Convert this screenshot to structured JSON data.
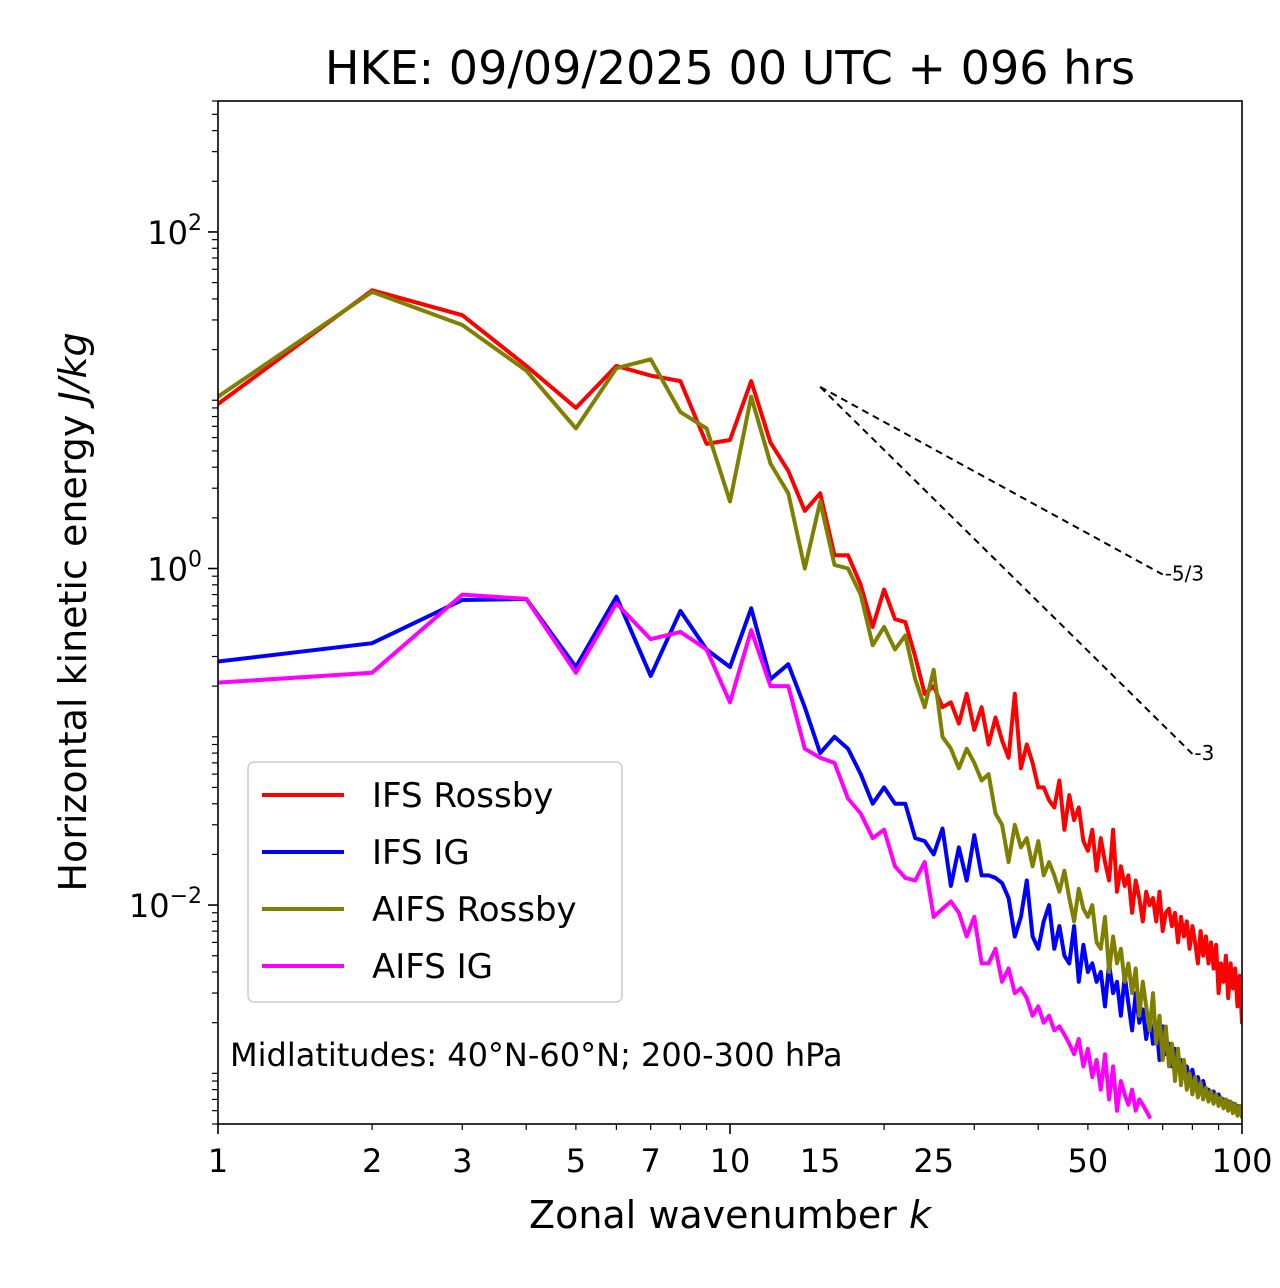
{
  "chart_data": {
    "type": "line",
    "title": "HKE: 09/09/2025 00 UTC + 096 hrs",
    "xlabel_main": "Zonal wavenumber ",
    "xlabel_var": "k",
    "ylabel_main": "Horizontal kinetic energy ",
    "ylabel_unit": "J/kg",
    "xscale": "log",
    "yscale": "log",
    "xlim": [
      1,
      100
    ],
    "ylim": [
      0.0005,
      600
    ],
    "x_ticks": [
      {
        "value": 1,
        "label": "1"
      },
      {
        "value": 2,
        "label": "2"
      },
      {
        "value": 3,
        "label": "3"
      },
      {
        "value": 5,
        "label": "5"
      },
      {
        "value": 7,
        "label": "7"
      },
      {
        "value": 10,
        "label": "10"
      },
      {
        "value": 15,
        "label": "15"
      },
      {
        "value": 25,
        "label": "25"
      },
      {
        "value": 50,
        "label": "50"
      },
      {
        "value": 100,
        "label": "100"
      }
    ],
    "y_ticks": [
      {
        "value": 100,
        "base": "10",
        "exp": "2"
      },
      {
        "value": 1,
        "base": "10",
        "exp": "0"
      },
      {
        "value": 0.01,
        "base": "10",
        "exp": "−2"
      }
    ],
    "annotation": "Midlatitudes: 40°N-60°N; 200-300 hPa",
    "legend_position": "lower-left",
    "reference_lines": [
      {
        "label": "-5/3",
        "slope": -1.6667,
        "x_start": 15,
        "y_start": 12,
        "x_end": 70
      },
      {
        "label": "-3",
        "slope": -3,
        "x_start": 15,
        "y_start": 12,
        "x_end": 80
      }
    ],
    "series": [
      {
        "name": "IFS Rossby",
        "color": "#ff0000",
        "x": [
          1,
          2,
          3,
          4,
          5,
          6,
          7,
          8,
          9,
          10,
          11,
          12,
          13,
          14,
          15,
          16,
          17,
          18,
          19,
          20,
          21,
          22,
          23,
          24,
          25,
          26,
          27,
          28,
          29,
          30,
          31,
          32,
          33,
          34,
          35,
          36,
          37,
          38,
          39,
          40,
          41,
          42,
          43,
          44,
          45,
          46,
          47,
          48,
          49,
          50,
          51,
          52,
          53,
          54,
          55,
          56,
          57,
          58,
          59,
          60,
          61,
          62,
          63,
          64,
          65,
          66,
          67,
          68,
          69,
          70,
          71,
          72,
          73,
          74,
          75,
          76,
          77,
          78,
          79,
          80,
          81,
          82,
          83,
          84,
          85,
          86,
          87,
          88,
          89,
          90,
          91,
          92,
          93,
          94,
          95,
          96,
          97,
          98,
          99,
          100
        ],
        "y": [
          9.5,
          45,
          32,
          16,
          9,
          16,
          14,
          13,
          5.5,
          5.8,
          13,
          5.6,
          3.8,
          2.2,
          2.8,
          1.2,
          1.2,
          0.8,
          0.45,
          0.75,
          0.5,
          0.48,
          0.3,
          0.18,
          0.2,
          0.15,
          0.16,
          0.12,
          0.18,
          0.11,
          0.15,
          0.09,
          0.13,
          0.095,
          0.075,
          0.18,
          0.065,
          0.09,
          0.07,
          0.05,
          0.05,
          0.042,
          0.038,
          0.055,
          0.028,
          0.045,
          0.032,
          0.038,
          0.024,
          0.021,
          0.028,
          0.016,
          0.025,
          0.018,
          0.014,
          0.028,
          0.012,
          0.017,
          0.013,
          0.015,
          0.009,
          0.014,
          0.011,
          0.008,
          0.012,
          0.01,
          0.011,
          0.008,
          0.012,
          0.007,
          0.009,
          0.0095,
          0.0075,
          0.009,
          0.006,
          0.0085,
          0.0065,
          0.008,
          0.0055,
          0.0075,
          0.006,
          0.0045,
          0.007,
          0.005,
          0.0065,
          0.0045,
          0.006,
          0.0042,
          0.0058,
          0.003,
          0.0045,
          0.0035,
          0.005,
          0.0028,
          0.0045,
          0.0032,
          0.0042,
          0.0025,
          0.0038,
          0.002
        ]
      },
      {
        "name": "IFS IG",
        "color": "#0000ff",
        "x": [
          1,
          2,
          3,
          4,
          5,
          6,
          7,
          8,
          9,
          10,
          11,
          12,
          13,
          14,
          15,
          16,
          17,
          18,
          19,
          20,
          21,
          22,
          23,
          24,
          25,
          26,
          27,
          28,
          29,
          30,
          31,
          32,
          33,
          34,
          35,
          36,
          37,
          38,
          39,
          40,
          41,
          42,
          43,
          44,
          45,
          46,
          47,
          48,
          49,
          50,
          51,
          52,
          53,
          54,
          55,
          56,
          57,
          58,
          59,
          60,
          61,
          62,
          63,
          64,
          65,
          66,
          67,
          68,
          69,
          70,
          71,
          72,
          73,
          74,
          75,
          76,
          77,
          78,
          79,
          80,
          81,
          82,
          83,
          84,
          85,
          86,
          87,
          88,
          89,
          90,
          91,
          92,
          93,
          94,
          95,
          96,
          97,
          98,
          99,
          100
        ],
        "y": [
          0.28,
          0.36,
          0.65,
          0.66,
          0.26,
          0.68,
          0.23,
          0.56,
          0.33,
          0.26,
          0.58,
          0.22,
          0.27,
          0.15,
          0.08,
          0.1,
          0.085,
          0.06,
          0.04,
          0.05,
          0.04,
          0.04,
          0.025,
          0.024,
          0.02,
          0.0285,
          0.013,
          0.022,
          0.014,
          0.026,
          0.015,
          0.015,
          0.0145,
          0.0135,
          0.011,
          0.0065,
          0.0085,
          0.014,
          0.0065,
          0.0055,
          0.008,
          0.01,
          0.0055,
          0.0075,
          0.005,
          0.0045,
          0.0075,
          0.0035,
          0.0058,
          0.004,
          0.0045,
          0.0035,
          0.004,
          0.0025,
          0.0045,
          0.003,
          0.0035,
          0.0022,
          0.0038,
          0.0026,
          0.0018,
          0.003,
          0.002,
          0.0024,
          0.0016,
          0.0022,
          0.0015,
          0.002,
          0.0012,
          0.0019,
          0.0013,
          0.0015,
          0.0011,
          0.0014,
          0.00105,
          0.0012,
          0.00095,
          0.0011,
          0.0009,
          0.00105,
          0.00085,
          0.00095,
          0.0008,
          0.0009,
          0.00075,
          0.0008,
          0.00072,
          0.00078,
          0.0007,
          0.00075,
          0.00068,
          0.0007,
          0.00066,
          0.00068,
          0.00064,
          0.00066,
          0.00062,
          0.00064,
          0.0006,
          0.00058
        ]
      },
      {
        "name": "AIFS Rossby",
        "color": "#808000",
        "x": [
          1,
          2,
          3,
          4,
          5,
          6,
          7,
          8,
          9,
          10,
          11,
          12,
          13,
          14,
          15,
          16,
          17,
          18,
          19,
          20,
          21,
          22,
          23,
          24,
          25,
          26,
          27,
          28,
          29,
          30,
          31,
          32,
          33,
          34,
          35,
          36,
          37,
          38,
          39,
          40,
          41,
          42,
          43,
          44,
          45,
          46,
          47,
          48,
          49,
          50,
          51,
          52,
          53,
          54,
          55,
          56,
          57,
          58,
          59,
          60,
          61,
          62,
          63,
          64,
          65,
          66,
          67,
          68,
          69,
          70,
          71,
          72,
          73,
          74,
          75,
          76,
          77,
          78,
          79,
          80,
          81,
          82,
          83,
          84,
          85,
          86,
          87,
          88,
          89,
          90,
          91,
          92,
          93,
          94,
          95,
          96,
          97,
          98,
          99,
          100
        ],
        "y": [
          10.5,
          44,
          28,
          15,
          6.8,
          15.5,
          17.5,
          8.5,
          6.8,
          2.5,
          10.5,
          4.2,
          2.8,
          1,
          2.5,
          1.05,
          1,
          0.7,
          0.35,
          0.45,
          0.33,
          0.4,
          0.22,
          0.15,
          0.25,
          0.1,
          0.085,
          0.065,
          0.085,
          0.07,
          0.055,
          0.06,
          0.035,
          0.03,
          0.018,
          0.03,
          0.022,
          0.025,
          0.017,
          0.024,
          0.015,
          0.018,
          0.015,
          0.012,
          0.016,
          0.011,
          0.008,
          0.0125,
          0.0095,
          0.0085,
          0.01,
          0.006,
          0.0055,
          0.0085,
          0.004,
          0.0065,
          0.0045,
          0.0055,
          0.0035,
          0.0045,
          0.003,
          0.0042,
          0.0022,
          0.0035,
          0.0025,
          0.0018,
          0.003,
          0.0015,
          0.0022,
          0.0012,
          0.0019,
          0.0011,
          0.0015,
          0.0009,
          0.0014,
          0.00085,
          0.0012,
          0.0008,
          0.001,
          0.00075,
          0.00095,
          0.00072,
          0.00088,
          0.0007,
          0.00082,
          0.00068,
          0.00078,
          0.00066,
          0.00075,
          0.00064,
          0.00072,
          0.00062,
          0.0007,
          0.0006,
          0.00068,
          0.00058,
          0.00066,
          0.00056,
          0.00064,
          0.00055
        ]
      },
      {
        "name": "AIFS IG",
        "color": "#ff00ff",
        "x": [
          1,
          2,
          3,
          4,
          5,
          6,
          7,
          8,
          9,
          10,
          11,
          12,
          13,
          14,
          15,
          16,
          17,
          18,
          19,
          20,
          21,
          22,
          23,
          24,
          25,
          26,
          27,
          28,
          29,
          30,
          31,
          32,
          33,
          34,
          35,
          36,
          37,
          38,
          39,
          40,
          41,
          42,
          43,
          44,
          45,
          46,
          47,
          48,
          49,
          50,
          51,
          52,
          53,
          54,
          55,
          56,
          57,
          58,
          59,
          60,
          61,
          62,
          63,
          64,
          65,
          66
        ],
        "y": [
          0.21,
          0.24,
          0.7,
          0.66,
          0.24,
          0.62,
          0.38,
          0.42,
          0.33,
          0.16,
          0.43,
          0.2,
          0.2,
          0.085,
          0.075,
          0.07,
          0.043,
          0.035,
          0.025,
          0.028,
          0.017,
          0.0145,
          0.014,
          0.018,
          0.0085,
          0.0095,
          0.0105,
          0.009,
          0.0065,
          0.0085,
          0.0045,
          0.0045,
          0.0055,
          0.0035,
          0.0042,
          0.003,
          0.0032,
          0.0028,
          0.0022,
          0.0025,
          0.002,
          0.0022,
          0.0018,
          0.0019,
          0.0017,
          0.0015,
          0.0013,
          0.0016,
          0.0011,
          0.0014,
          0.00095,
          0.0012,
          0.0008,
          0.0013,
          0.0007,
          0.0011,
          0.0006,
          0.0009,
          0.00075,
          0.00065,
          0.0008,
          0.0006,
          0.0007,
          0.00065,
          0.0006,
          0.00055
        ]
      }
    ]
  }
}
